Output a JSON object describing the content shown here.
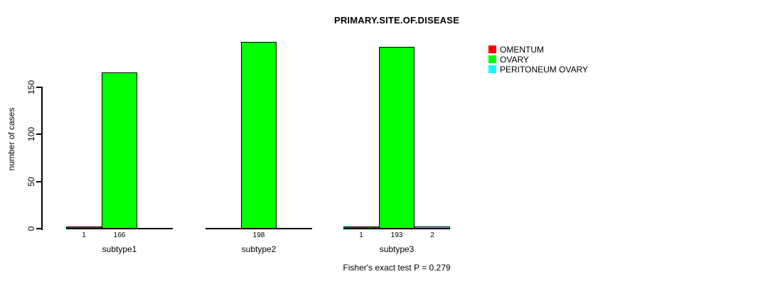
{
  "chart_data": {
    "type": "bar",
    "title": "PRIMARY.SITE.OF.DISEASE",
    "ylabel": "number of cases",
    "xlabel": "",
    "footer": "Fisher's exact test P = 0.279",
    "categories": [
      "subtype1",
      "subtype2",
      "subtype3"
    ],
    "series": [
      {
        "name": "OMENTUM",
        "color": "#FF0000",
        "values": [
          1,
          0,
          1
        ]
      },
      {
        "name": "OVARY",
        "color": "#00FF00",
        "values": [
          166,
          198,
          193
        ]
      },
      {
        "name": "PERITONEUM OVARY",
        "color": "#00FFFF",
        "values": [
          0,
          0,
          2
        ]
      }
    ],
    "yticks": [
      0,
      50,
      100,
      150
    ],
    "ylim": [
      0,
      198
    ],
    "grid": false,
    "legend_position": "top-right",
    "bar_border_color": "#000000",
    "axis_color": "#000000",
    "background": "#FFFFFF",
    "notes": "zero-value bars are not drawn and not labeled; count labels shown under each non-zero bar"
  }
}
